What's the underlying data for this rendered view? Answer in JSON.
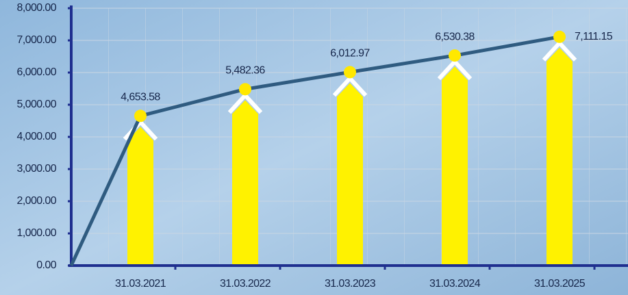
{
  "chart_data": {
    "type": "line",
    "categories": [
      null,
      "31.03.2021",
      "31.03.2022",
      "31.03.2023",
      "31.03.2024",
      "31.03.2025"
    ],
    "series": [
      {
        "color": "#2f5b80",
        "marker_color": "#ffe800",
        "bar_color": "#fff200",
        "values": [
          0,
          4653.58,
          5482.36,
          6012.97,
          6530.38,
          7111.15
        ],
        "value_labels": [
          null,
          "4,653.58",
          "5,482.36",
          "6,012.97",
          "6,530.38",
          "7,111.15"
        ]
      }
    ],
    "ylim": [
      0,
      8000
    ],
    "yticks": [
      {
        "value": 0,
        "label": "0.00"
      },
      {
        "value": 1000,
        "label": "1,000.00"
      },
      {
        "value": 2000,
        "label": "2,000.00"
      },
      {
        "value": 3000,
        "label": "3,000.00"
      },
      {
        "value": 4000,
        "label": "4,000.00"
      },
      {
        "value": 5000,
        "label": "5,000.00"
      },
      {
        "value": 6000,
        "label": "6,000.00"
      },
      {
        "value": 7000,
        "label": "7,000.00"
      },
      {
        "value": 8000,
        "label": "8,000.00"
      }
    ],
    "grid": true
  }
}
